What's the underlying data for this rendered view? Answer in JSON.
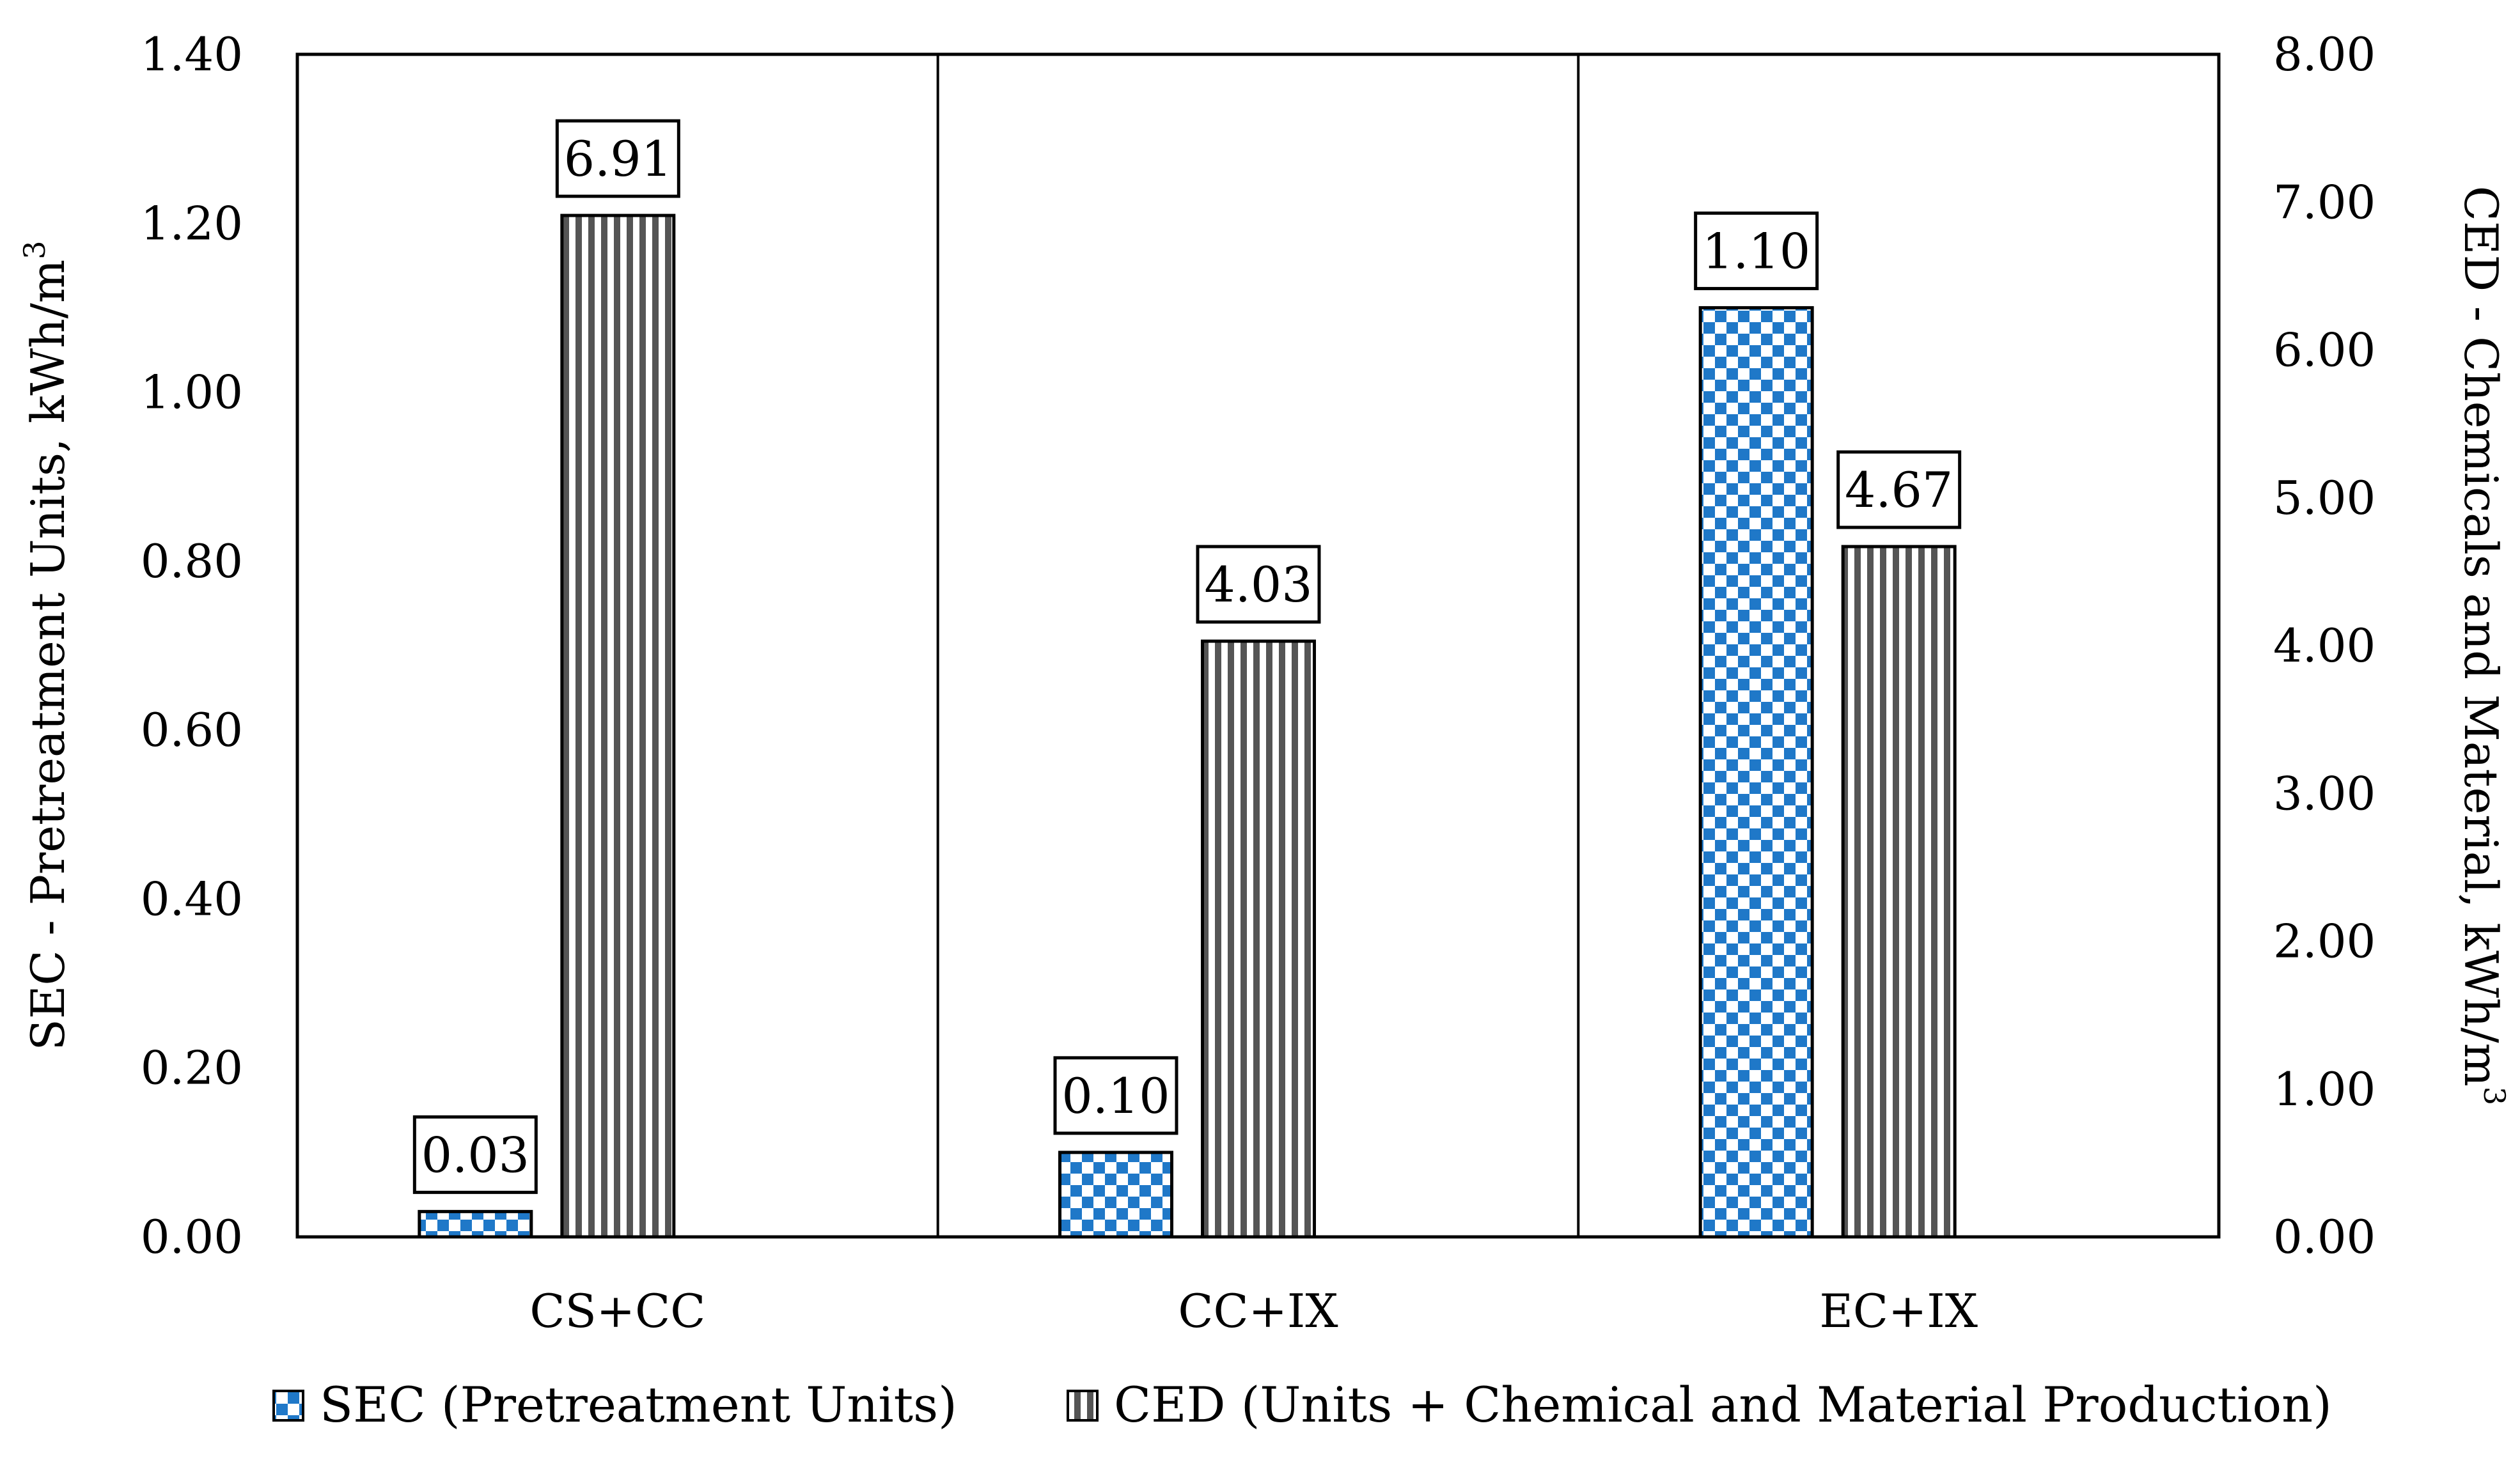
{
  "chart_data": {
    "type": "bar",
    "categories": [
      "CS+CC",
      "CC+IX",
      "EC+IX"
    ],
    "series": [
      {
        "name": "SEC (Pretreatment Units)",
        "axis": "left",
        "values": [
          0.03,
          0.1,
          1.1
        ],
        "labels": [
          "0.03",
          "0.10",
          "1.10"
        ],
        "pattern": "checker",
        "color": "#1f78c8"
      },
      {
        "name": "CED (Units + Chemical and Material Production)",
        "axis": "right",
        "values": [
          6.91,
          4.03,
          4.67
        ],
        "labels": [
          "6.91",
          "4.03",
          "4.67"
        ],
        "pattern": "vertical-stripes",
        "color": "#555555"
      }
    ],
    "y_left": {
      "title": "SEC - Pretreatment Units, kWh/m",
      "title_sup": "3",
      "range": [
        0,
        1.4
      ],
      "ticks": [
        "0.00",
        "0.20",
        "0.40",
        "0.60",
        "0.80",
        "1.00",
        "1.20",
        "1.40"
      ]
    },
    "y_right": {
      "title": "CED - Chemicals and Material, kWh/m",
      "title_sup": "3",
      "range": [
        0,
        8
      ],
      "ticks": [
        "0.00",
        "1.00",
        "2.00",
        "3.00",
        "4.00",
        "5.00",
        "6.00",
        "7.00",
        "8.00"
      ]
    },
    "grid": false,
    "legend_position": "bottom"
  }
}
